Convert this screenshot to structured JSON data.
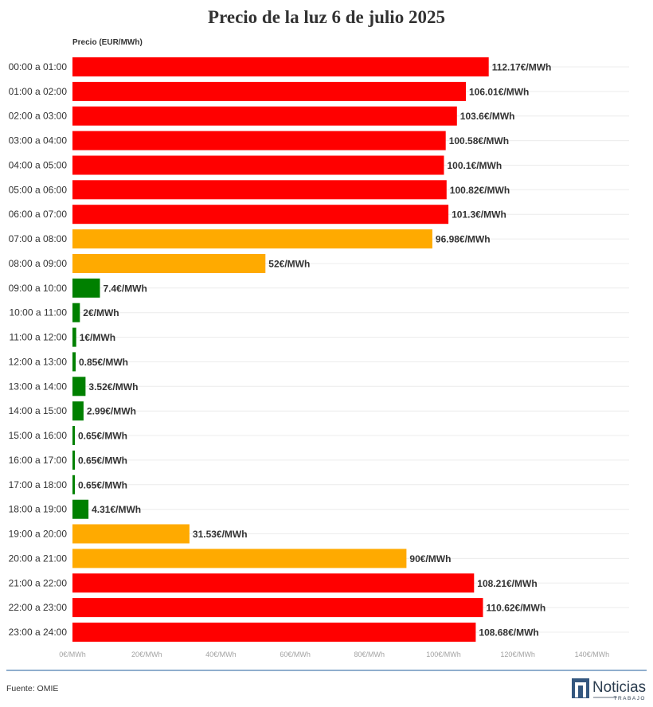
{
  "chart_data": {
    "type": "bar",
    "orientation": "horizontal",
    "title": "Precio de la luz 6 de julio 2025",
    "axis_title": "Precio (EUR/MWh)",
    "categories": [
      "00:00 a 01:00",
      "01:00 a 02:00",
      "02:00 a 03:00",
      "03:00 a 04:00",
      "04:00 a 05:00",
      "05:00 a 06:00",
      "06:00 a 07:00",
      "07:00 a 08:00",
      "08:00 a 09:00",
      "09:00 a 10:00",
      "10:00 a 11:00",
      "11:00 a 12:00",
      "12:00 a 13:00",
      "13:00 a 14:00",
      "14:00 a 15:00",
      "15:00 a 16:00",
      "16:00 a 17:00",
      "17:00 a 18:00",
      "18:00 a 19:00",
      "19:00 a 20:00",
      "20:00 a 21:00",
      "21:00 a 22:00",
      "22:00 a 23:00",
      "23:00 a 24:00"
    ],
    "values": [
      112.17,
      106.01,
      103.6,
      100.58,
      100.1,
      100.82,
      101.3,
      96.98,
      52,
      7.4,
      2,
      1,
      0.85,
      3.52,
      2.99,
      0.65,
      0.65,
      0.65,
      4.31,
      31.53,
      90,
      108.21,
      110.62,
      108.68
    ],
    "data_labels": [
      "112.17€/MWh",
      "106.01€/MWh",
      "103.6€/MWh",
      "100.58€/MWh",
      "100.1€/MWh",
      "100.82€/MWh",
      "101.3€/MWh",
      "96.98€/MWh",
      "52€/MWh",
      "7.4€/MWh",
      "2€/MWh",
      "1€/MWh",
      "0.85€/MWh",
      "3.52€/MWh",
      "2.99€/MWh",
      "0.65€/MWh",
      "0.65€/MWh",
      "0.65€/MWh",
      "4.31€/MWh",
      "31.53€/MWh",
      "90€/MWh",
      "108.21€/MWh",
      "110.62€/MWh",
      "108.68€/MWh"
    ],
    "bar_colors": [
      "#ff0000",
      "#ff0000",
      "#ff0000",
      "#ff0000",
      "#ff0000",
      "#ff0000",
      "#ff0000",
      "#ffaa00",
      "#ffaa00",
      "#008000",
      "#008000",
      "#008000",
      "#008000",
      "#008000",
      "#008000",
      "#008000",
      "#008000",
      "#008000",
      "#008000",
      "#ffaa00",
      "#ffaa00",
      "#ff0000",
      "#ff0000",
      "#ff0000"
    ],
    "xlim": [
      0,
      150
    ],
    "xticks": [
      0,
      20,
      40,
      60,
      80,
      100,
      120,
      140
    ],
    "xtick_labels": [
      "0€/MWh",
      "20€/MWh",
      "40€/MWh",
      "60€/MWh",
      "80€/MWh",
      "100€/MWh",
      "120€/MWh",
      "140€/MWh"
    ],
    "grid": true
  },
  "colors": {
    "high": "#ff0000",
    "medium": "#ffaa00",
    "low": "#008000",
    "footer_rule": "#6b93bd",
    "logo_mark": "#34577f"
  },
  "footer": {
    "source": "Fuente: OMIE"
  },
  "logo": {
    "brand": "Noticias",
    "tagline": "TRABAJO",
    "icon": "n-logo-icon"
  }
}
